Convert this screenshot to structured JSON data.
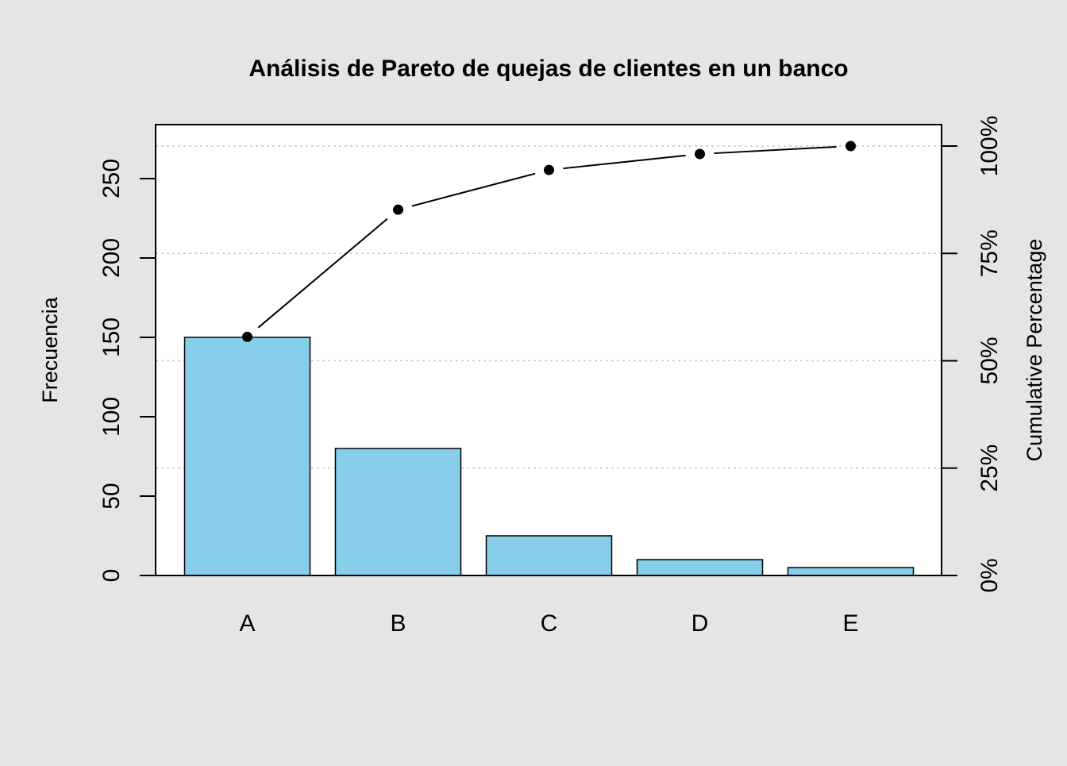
{
  "chart_data": {
    "type": "bar",
    "title": "Análisis de Pareto de quejas de clientes en un banco",
    "categories": [
      "A",
      "B",
      "C",
      "D",
      "E"
    ],
    "values": [
      150,
      80,
      25,
      10,
      5
    ],
    "cumulative_percent": [
      55.56,
      85.19,
      94.44,
      98.15,
      100
    ],
    "ylabel": "Frecuencia",
    "ylabel_right": "Cumulative Percentage",
    "ylim": [
      0,
      270
    ],
    "y_ticks": [
      0,
      50,
      100,
      150,
      200,
      250
    ],
    "y_tick_labels": [
      "0",
      "50",
      "100",
      "150",
      "200",
      "250"
    ],
    "y2_ticks": [
      0,
      25,
      50,
      75,
      100
    ],
    "y2_tick_labels": [
      "0%",
      "25%",
      "50%",
      "75%",
      "100%"
    ],
    "grid": true,
    "colors": {
      "bar_fill": "#87ceeb",
      "bar_stroke": "#000000",
      "line": "#000000",
      "grid": "#c8c8c8",
      "background": "#e5e5e5",
      "panel": "#ffffff"
    }
  }
}
